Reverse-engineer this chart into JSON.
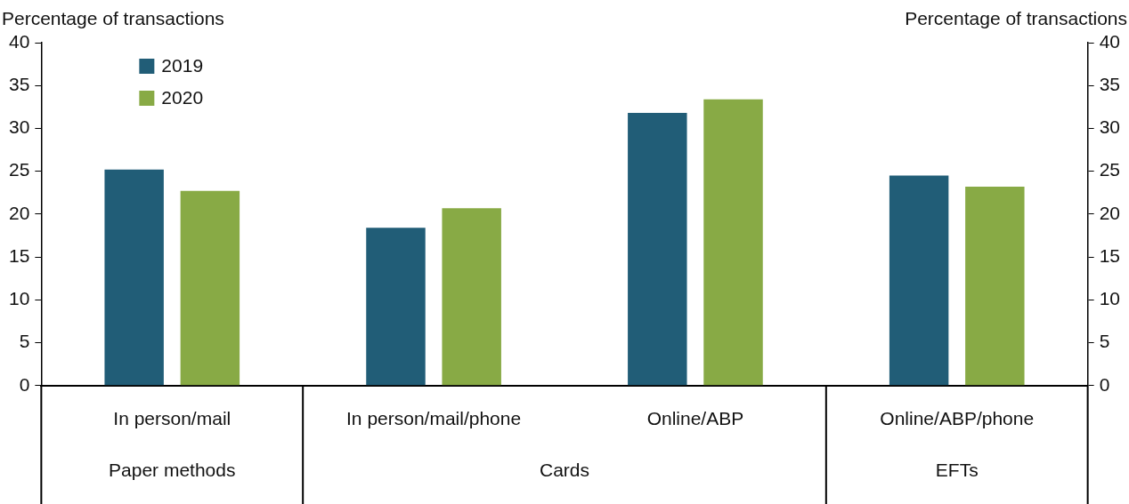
{
  "chart_data": {
    "type": "bar",
    "categories": [
      "In person/mail",
      "In person/mail/phone",
      "Online/ABP",
      "Online/ABP/phone"
    ],
    "series": [
      {
        "name": "2019",
        "color": "#215d77",
        "values": [
          25.2,
          18.4,
          31.8,
          24.5
        ]
      },
      {
        "name": "2020",
        "color": "#88aa45",
        "values": [
          22.7,
          20.7,
          33.4,
          23.2
        ]
      }
    ],
    "ylabel": "Percentage of transactions",
    "y2label": "Percentage of transactions",
    "ylim": [
      0,
      40
    ],
    "yticks": [
      0,
      5,
      10,
      15,
      20,
      25,
      30,
      35,
      40
    ],
    "y2lim": [
      0,
      40
    ],
    "y2ticks": [
      0,
      5,
      10,
      15,
      20,
      25,
      30,
      35,
      40
    ],
    "annotations": [
      "Paper methods",
      "Cards",
      "EFTs"
    ],
    "grid": false,
    "legend": "top left"
  }
}
